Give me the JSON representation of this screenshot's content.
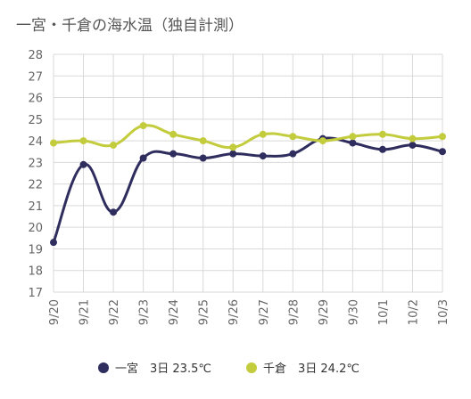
{
  "title": "一宮・千倉の海水温（独自計測）",
  "chart_data": {
    "type": "line",
    "title": "一宮・千倉の海水温（独自計測）",
    "categories": [
      "9/20",
      "9/21",
      "9/22",
      "9/23",
      "9/24",
      "9/25",
      "9/26",
      "9/27",
      "9/28",
      "9/29",
      "9/30",
      "10/1",
      "10/2",
      "10/3"
    ],
    "ylim": [
      17,
      28
    ],
    "yticks": [
      17,
      18,
      19,
      20,
      21,
      22,
      23,
      24,
      25,
      26,
      27,
      28
    ],
    "grid": true,
    "legend_position": "bottom",
    "series": [
      {
        "name": "一宮",
        "legend_label": "一宮　3日 23.5℃",
        "color": "#2e2d5e",
        "values": [
          19.3,
          22.9,
          20.7,
          23.2,
          23.4,
          23.2,
          23.4,
          23.3,
          23.4,
          24.1,
          23.9,
          23.6,
          23.8,
          23.5
        ]
      },
      {
        "name": "千倉",
        "legend_label": "千倉　3日 24.2℃",
        "color": "#c3cc3c",
        "values": [
          23.9,
          24.0,
          23.8,
          24.7,
          24.3,
          24.0,
          23.7,
          24.3,
          24.2,
          24.0,
          24.2,
          24.3,
          24.1,
          24.2
        ]
      }
    ]
  }
}
